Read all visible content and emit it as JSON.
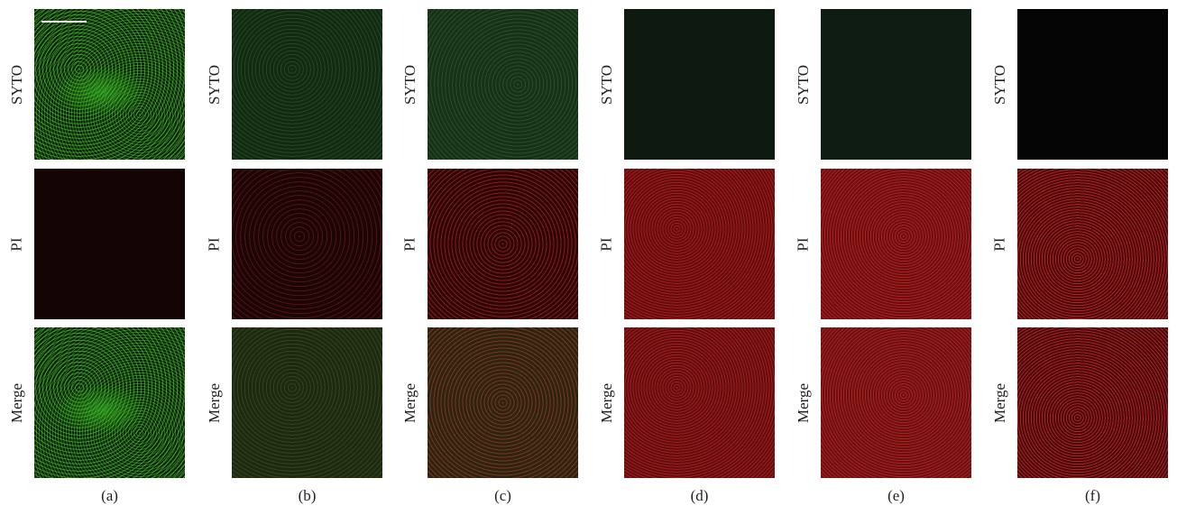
{
  "row_labels": [
    "SYTO",
    "PI",
    "Merge"
  ],
  "columns": [
    {
      "caption": "(a)"
    },
    {
      "caption": "(b)"
    },
    {
      "caption": "(c)"
    },
    {
      "caption": "(d)"
    },
    {
      "caption": "(e)"
    },
    {
      "caption": "(f)"
    }
  ],
  "colors": {
    "syto_green": "#3cc828",
    "pi_red": "#e62828",
    "background": "#ffffff"
  }
}
